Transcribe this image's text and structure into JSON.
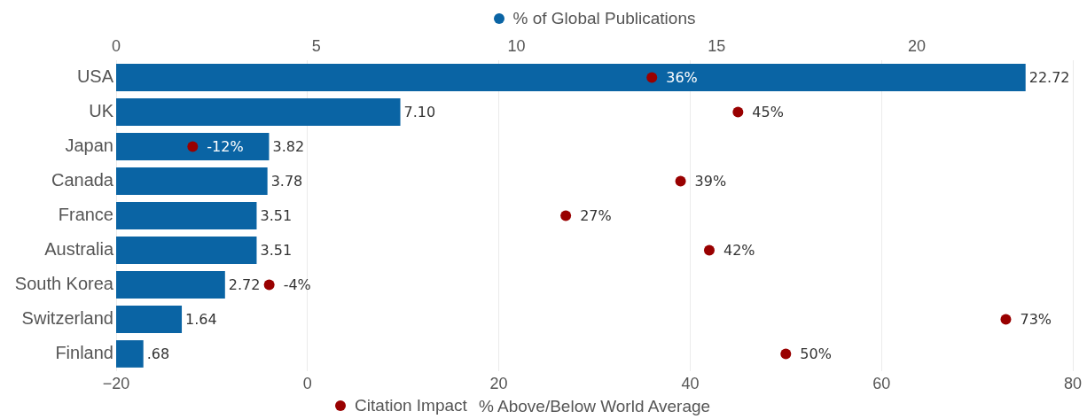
{
  "chart_data": {
    "type": "bar",
    "orientation": "horizontal",
    "categories": [
      "USA",
      "UK",
      "Japan",
      "Canada",
      "France",
      "Australia",
      "South Korea",
      "Switzerland",
      "Finland"
    ],
    "series": [
      {
        "name": "% of Global Publications",
        "axis": "x2",
        "color": "#0a64a4",
        "values": [
          22.72,
          7.1,
          3.82,
          3.78,
          3.51,
          3.51,
          2.72,
          1.64,
          0.68
        ],
        "value_labels": [
          "22.72",
          "7.10",
          "3.82",
          "3.78",
          "3.51",
          "3.51",
          "2.72",
          "1.64",
          ".68"
        ]
      },
      {
        "name": "Citation Impact",
        "type": "scatter",
        "color": "#990000",
        "values": [
          36,
          45,
          -12,
          39,
          27,
          42,
          -4,
          73,
          50
        ],
        "value_labels": [
          "36%",
          "45%",
          "-12%",
          "39%",
          "27%",
          "42%",
          "-4%",
          "73%",
          "50%"
        ]
      }
    ],
    "xlabel": "% Above/Below World Average",
    "xlim": [
      -20,
      80
    ],
    "xticks": [
      {
        "value": -20,
        "label": "−20"
      },
      0,
      20,
      40,
      60,
      80
    ],
    "x2lim": [
      0,
      23.9
    ],
    "x2ticks": [
      0,
      5,
      10,
      15,
      20
    ],
    "grid": "x",
    "legend": "top",
    "marker": "circle"
  }
}
